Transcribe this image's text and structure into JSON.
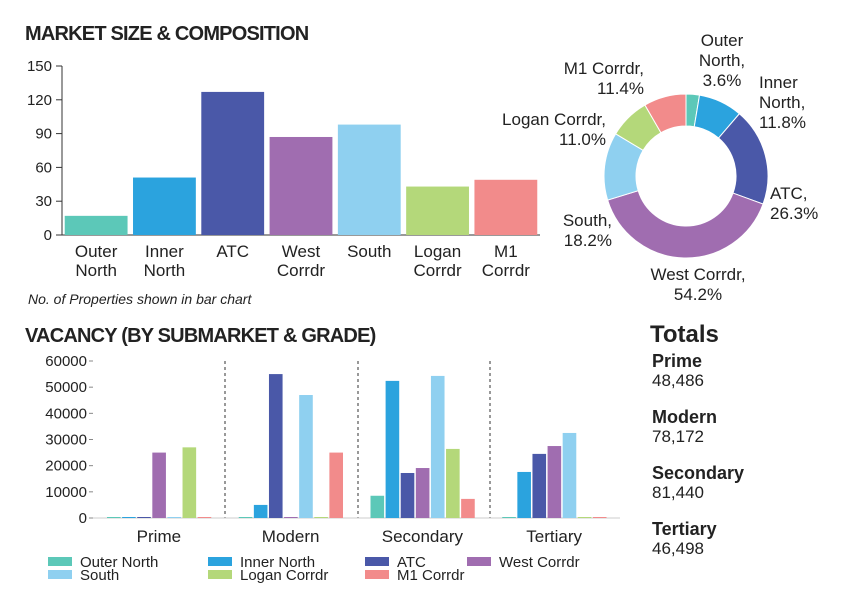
{
  "chart_data": [
    {
      "type": "bar",
      "title": "MARKET SIZE & COMPOSITION",
      "categories": [
        "Outer North",
        "Inner North",
        "ATC",
        "West Corrdr",
        "South",
        "Logan Corrdr",
        "M1 Corrdr"
      ],
      "values": [
        17,
        51,
        127,
        87,
        98,
        43,
        49
      ],
      "colors": [
        "#5cc8b8",
        "#2ba3de",
        "#4a58a8",
        "#a06db0",
        "#8fd0f0",
        "#b4d87a",
        "#f28b8b"
      ],
      "ylim": [
        0,
        150
      ],
      "yticks": [
        0,
        30,
        60,
        90,
        120,
        150
      ],
      "note": "No. of Properties shown in bar chart"
    },
    {
      "type": "donut",
      "categories": [
        "Outer North,",
        "Inner North,",
        "ATC,",
        "West Corrdr,",
        "South,",
        "Logan Corrdr,",
        "M1 Corrdr,"
      ],
      "values": [
        3.6,
        11.8,
        26.3,
        54.2,
        18.2,
        11.0,
        11.4
      ],
      "value_labels": [
        "3.6%",
        "11.8%",
        "26.3%",
        "54.2%",
        "18.2%",
        "11.0%",
        "11.4%"
      ],
      "colors": [
        "#5cc8b8",
        "#2ba3de",
        "#4a58a8",
        "#a06db0",
        "#8fd0f0",
        "#b4d87a",
        "#f28b8b"
      ]
    },
    {
      "type": "grouped_bar",
      "title": "VACANCY (BY SUBMARKET & GRADE)",
      "categories": [
        "Prime",
        "Modern",
        "Secondary",
        "Tertiary"
      ],
      "series": [
        {
          "name": "Outer North",
          "color": "#5cc8b8",
          "values": [
            0,
            0,
            8500,
            0
          ]
        },
        {
          "name": "Inner North",
          "color": "#2ba3de",
          "values": [
            0,
            5000,
            52400,
            17600
          ]
        },
        {
          "name": "ATC",
          "color": "#4a58a8",
          "values": [
            0,
            55000,
            17200,
            24500
          ]
        },
        {
          "name": "West Corrdr",
          "color": "#a06db0",
          "values": [
            25000,
            0,
            19100,
            27500
          ]
        },
        {
          "name": "South",
          "color": "#8fd0f0",
          "values": [
            0,
            47000,
            54300,
            32500
          ]
        },
        {
          "name": "Logan Corrdr",
          "color": "#b4d87a",
          "values": [
            27000,
            0,
            26400,
            0
          ]
        },
        {
          "name": "M1 Corrdr",
          "color": "#f28b8b",
          "values": [
            0,
            25000,
            7300,
            0
          ]
        }
      ],
      "ylim": [
        0,
        60000
      ],
      "yticks": [
        0,
        10000,
        20000,
        30000,
        40000,
        50000,
        60000
      ]
    }
  ],
  "totals": {
    "title": "Totals",
    "items": [
      {
        "label": "Prime",
        "value": "48,486"
      },
      {
        "label": "Modern",
        "value": "78,172"
      },
      {
        "label": "Secondary",
        "value": "81,440"
      },
      {
        "label": "Tertiary",
        "value": "46,498"
      }
    ]
  }
}
